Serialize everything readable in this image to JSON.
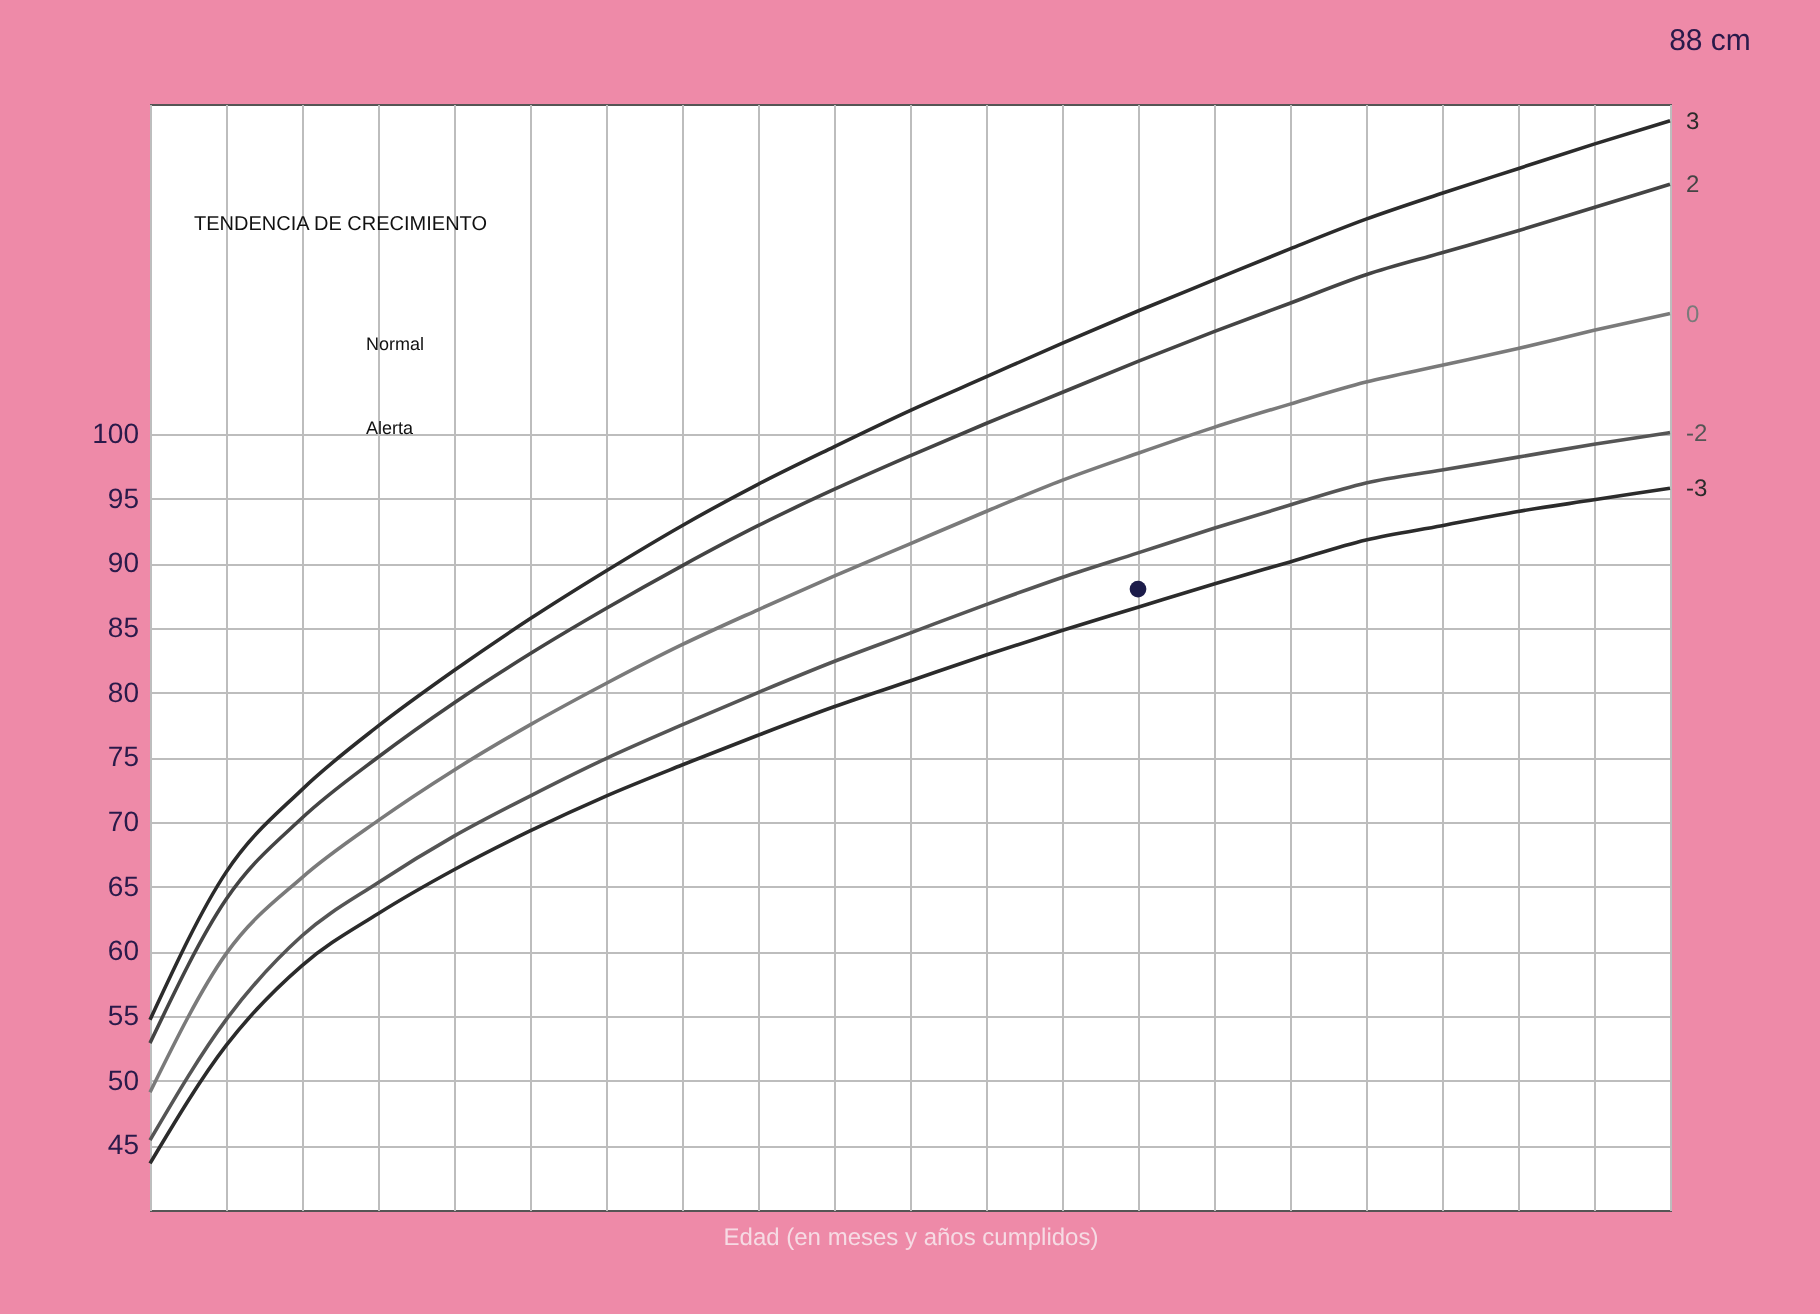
{
  "chart_data": {
    "type": "line",
    "xlabel": "Edad (en meses y años cumplidos)",
    "categories": [
      null,
      null,
      null,
      null,
      null,
      null,
      null,
      null,
      null,
      null,
      null,
      null,
      null,
      null,
      null,
      null,
      null,
      null,
      null,
      null,
      null
    ],
    "series": [
      {
        "name": "3",
        "color": "#2b2b2b",
        "values": [
          54.7,
          66.1,
          72.5,
          77.4,
          81.7,
          85.7,
          89.4,
          92.9,
          96.1,
          99.0,
          101.8,
          104.4,
          107.0,
          109.5,
          111.9,
          114.3,
          116.6,
          118.6,
          120.5,
          122.4,
          124.2
        ]
      },
      {
        "name": "2",
        "color": "#444444",
        "values": [
          52.9,
          64.0,
          70.3,
          75.0,
          79.2,
          83.0,
          86.5,
          89.8,
          92.9,
          95.7,
          98.3,
          100.8,
          103.2,
          105.6,
          107.9,
          110.1,
          112.3,
          114.0,
          115.7,
          117.5,
          119.3
        ]
      },
      {
        "name": "0",
        "color": "#7a7a7a",
        "values": [
          49.1,
          59.8,
          65.7,
          70.1,
          74.0,
          77.5,
          80.7,
          83.7,
          86.4,
          89.0,
          91.5,
          94.0,
          96.4,
          98.5,
          100.5,
          102.3,
          104.0,
          105.3,
          106.6,
          108.0,
          109.3
        ]
      },
      {
        "name": "-2",
        "color": "#555555",
        "values": [
          45.4,
          54.7,
          61.2,
          65.3,
          68.9,
          72.0,
          74.9,
          77.5,
          80.0,
          82.4,
          84.6,
          86.8,
          88.9,
          90.8,
          92.7,
          94.5,
          96.2,
          97.2,
          98.2,
          99.2,
          100.1
        ]
      },
      {
        "name": "-3",
        "color": "#2b2b2b",
        "values": [
          43.6,
          52.7,
          58.9,
          62.9,
          66.3,
          69.3,
          72.0,
          74.4,
          76.7,
          78.9,
          80.9,
          82.9,
          84.8,
          86.6,
          88.4,
          90.1,
          91.8,
          92.9,
          94.0,
          94.9,
          95.8
        ]
      },
      {
        "type": "scatter",
        "marker": "circle",
        "color": "#1c1c4a",
        "values": [
          null,
          null,
          null,
          null,
          null,
          null,
          null,
          null,
          null,
          null,
          null,
          null,
          null,
          88,
          null,
          null,
          null,
          null,
          null,
          null,
          null
        ]
      }
    ],
    "ylim": [
      40,
      125.5
    ],
    "yticks": [
      45,
      50,
      55,
      60,
      65,
      70,
      75,
      80,
      85,
      90,
      95,
      100
    ],
    "grid": true,
    "tick_labels": "y",
    "marker": "none",
    "line_style": "solid",
    "annotations": [
      "88 cm",
      "TENDENCIA DE CRECIMIENTO",
      "Normal",
      "Alerta"
    ]
  }
}
